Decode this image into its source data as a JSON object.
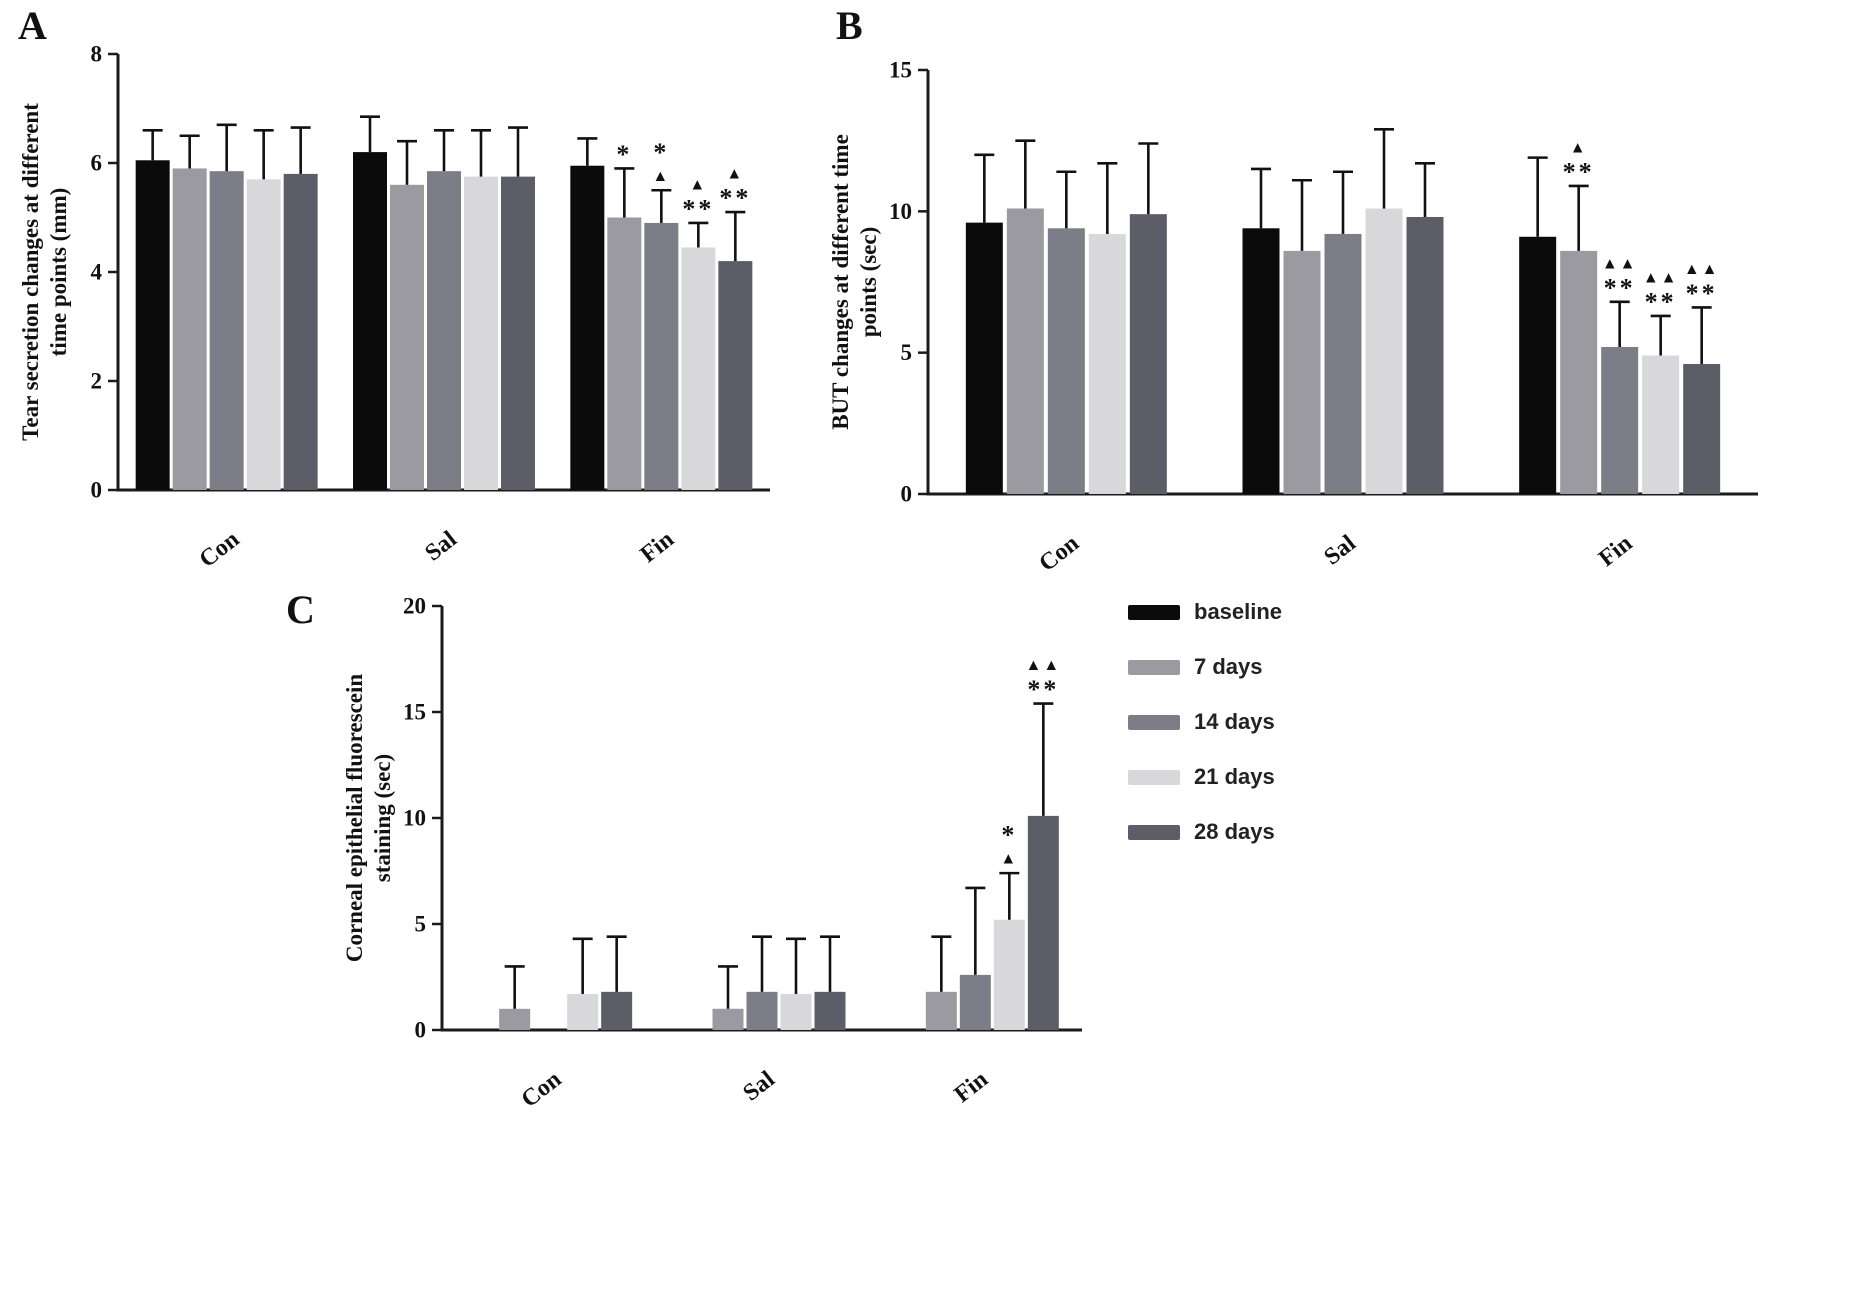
{
  "figure": {
    "panel_labels": {
      "a": "A",
      "b": "B",
      "c": "C"
    }
  },
  "legend": {
    "position": "right-middle",
    "items": [
      {
        "label": "baseline",
        "color": "#0b0b0b"
      },
      {
        "label": "7 days",
        "color": "#9a9aa0"
      },
      {
        "label": "14 days",
        "color": "#7d7d87"
      },
      {
        "label": "21 days",
        "color": "#d8d8da"
      },
      {
        "label": "28 days",
        "color": "#5d5d68"
      }
    ]
  },
  "chart_data": [
    {
      "type": "bar",
      "panel": "A",
      "ylabel_lines": [
        "Tear secretion changes at different",
        "time points (mm)"
      ],
      "categories": [
        "Con",
        "Sal",
        "Fin"
      ],
      "ylim": [
        0,
        8
      ],
      "yticks": [
        0,
        2,
        4,
        6,
        8
      ],
      "legend_position": "none",
      "grid": false,
      "series": [
        {
          "name": "baseline",
          "values": [
            6.05,
            6.2,
            5.95
          ],
          "errors": [
            0.55,
            0.65,
            0.5
          ]
        },
        {
          "name": "7 days",
          "values": [
            5.9,
            5.6,
            5.0
          ],
          "errors": [
            0.6,
            0.8,
            0.9
          ]
        },
        {
          "name": "14 days",
          "values": [
            5.85,
            5.85,
            4.9
          ],
          "errors": [
            0.85,
            0.75,
            0.6
          ]
        },
        {
          "name": "21 days",
          "values": [
            5.7,
            5.75,
            4.45
          ],
          "errors": [
            0.9,
            0.85,
            0.45
          ]
        },
        {
          "name": "28 days",
          "values": [
            5.8,
            5.75,
            4.2
          ],
          "errors": [
            0.85,
            0.9,
            0.9
          ]
        }
      ],
      "annotations": [
        {
          "category": "Fin",
          "series": "7 days",
          "lines": [
            "*"
          ]
        },
        {
          "category": "Fin",
          "series": "14 days",
          "lines": [
            "*",
            "▲"
          ]
        },
        {
          "category": "Fin",
          "series": "21 days",
          "lines": [
            "▲",
            "**"
          ]
        },
        {
          "category": "Fin",
          "series": "28 days",
          "lines": [
            "▲",
            "**"
          ]
        }
      ]
    },
    {
      "type": "bar",
      "panel": "B",
      "ylabel_lines": [
        "BUT changes at different time",
        "points (sec)"
      ],
      "categories": [
        "Con",
        "Sal",
        "Fin"
      ],
      "ylim": [
        0,
        15
      ],
      "yticks": [
        0,
        5,
        10,
        15
      ],
      "legend_position": "none",
      "grid": false,
      "series": [
        {
          "name": "baseline",
          "values": [
            9.6,
            9.4,
            9.1
          ],
          "errors": [
            2.4,
            2.1,
            2.8
          ]
        },
        {
          "name": "7 days",
          "values": [
            10.1,
            8.6,
            8.6
          ],
          "errors": [
            2.4,
            2.5,
            2.3
          ]
        },
        {
          "name": "14 days",
          "values": [
            9.4,
            9.2,
            5.2
          ],
          "errors": [
            2.0,
            2.2,
            1.6
          ]
        },
        {
          "name": "21 days",
          "values": [
            9.2,
            10.1,
            4.9
          ],
          "errors": [
            2.5,
            2.8,
            1.4
          ]
        },
        {
          "name": "28 days",
          "values": [
            9.9,
            9.8,
            4.6
          ],
          "errors": [
            2.5,
            1.9,
            2.0
          ]
        }
      ],
      "annotations": [
        {
          "category": "Fin",
          "series": "7 days",
          "lines": [
            "▲",
            "**"
          ]
        },
        {
          "category": "Fin",
          "series": "14 days",
          "lines": [
            "▲▲",
            "**"
          ]
        },
        {
          "category": "Fin",
          "series": "21 days",
          "lines": [
            "▲▲",
            "**"
          ]
        },
        {
          "category": "Fin",
          "series": "28 days",
          "lines": [
            "▲▲",
            "**"
          ]
        }
      ]
    },
    {
      "type": "bar",
      "panel": "C",
      "ylabel_lines": [
        "Corneal epithelial fluorescein",
        "staining (sec)"
      ],
      "categories": [
        "Con",
        "Sal",
        "Fin"
      ],
      "ylim": [
        0,
        20
      ],
      "yticks": [
        0,
        5,
        10,
        15,
        20
      ],
      "legend_position": "right",
      "grid": false,
      "series": [
        {
          "name": "baseline",
          "values": [
            0,
            0,
            0
          ],
          "errors": [
            0,
            0,
            0
          ]
        },
        {
          "name": "7 days",
          "values": [
            1.0,
            1.0,
            1.8
          ],
          "errors": [
            2.0,
            2.0,
            2.6
          ]
        },
        {
          "name": "14 days",
          "values": [
            0,
            1.8,
            2.6
          ],
          "errors": [
            0,
            2.6,
            4.1
          ]
        },
        {
          "name": "21 days",
          "values": [
            1.7,
            1.7,
            5.2
          ],
          "errors": [
            2.6,
            2.6,
            2.2
          ]
        },
        {
          "name": "28 days",
          "values": [
            1.8,
            1.8,
            10.1
          ],
          "errors": [
            2.6,
            2.6,
            5.3
          ]
        }
      ],
      "annotations": [
        {
          "category": "Fin",
          "series": "21 days",
          "lines": [
            "*",
            "▲"
          ]
        },
        {
          "category": "Fin",
          "series": "28 days",
          "lines": [
            "▲▲",
            "**"
          ]
        }
      ]
    }
  ]
}
